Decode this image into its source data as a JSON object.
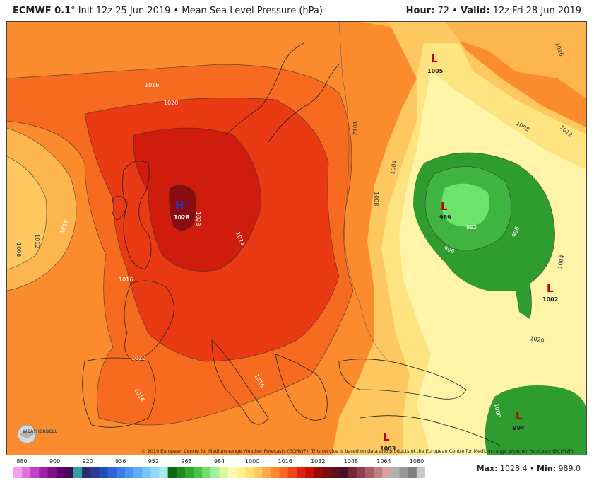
{
  "header": {
    "model": "ECMWF 0.1",
    "degree": "°",
    "init": "Init 12z 25 Jun 2019",
    "bullet": "•",
    "field": "Mean Sea Level Pressure (hPa)",
    "hour_label": "Hour:",
    "hour_value": "72",
    "valid_label": "Valid:",
    "valid_value": "12z Fri 28 Jun 2019"
  },
  "centers": [
    {
      "type": "H",
      "value": "1028",
      "color": "#1a3cc8"
    },
    {
      "type": "L",
      "value": "1005",
      "color": "#c00000"
    },
    {
      "type": "L",
      "value": "989",
      "color": "#c00000"
    },
    {
      "type": "L",
      "value": "1002",
      "color": "#c00000"
    },
    {
      "type": "L",
      "value": "994",
      "color": "#c00000"
    },
    {
      "type": "L",
      "value": "1003",
      "color": "#c00000"
    }
  ],
  "isobar_labels": [
    "1016",
    "1020",
    "1016",
    "1012",
    "1008",
    "1016",
    "1020",
    "1024",
    "1028",
    "1012",
    "1008",
    "1004",
    "1008",
    "1012",
    "1016",
    "996",
    "992",
    "996",
    "1004",
    "1000",
    "1016",
    "1016",
    "1020"
  ],
  "credit": "© 2019 European Centre for Medium-range Weather Forecasts (ECMWF). This service is based on data and products of the European Centre for Medium-range Weather Forecasts (ECMWF).",
  "logo_text": "WEATHERBELL",
  "colorbar": {
    "ticks": [
      "880",
      "900",
      "920",
      "936",
      "952",
      "968",
      "984",
      "1000",
      "1016",
      "1032",
      "1048",
      "1064",
      "1080"
    ],
    "colors": [
      "#f2a0f0",
      "#e070e0",
      "#c040c8",
      "#a020a8",
      "#801088",
      "#600070",
      "#480858",
      "#30a0a0",
      "#2c2c70",
      "#283c90",
      "#1e50b8",
      "#2a64d8",
      "#3a7ce8",
      "#4c94f0",
      "#60acf4",
      "#78c4f8",
      "#90d8f8",
      "#a8e8f0",
      "#106810",
      "#1e8a1e",
      "#2ea82e",
      "#48c448",
      "#6ee06e",
      "#a0f0a0",
      "#d8f8a0",
      "#fff8b0",
      "#fff090",
      "#ffe070",
      "#ffc860",
      "#ffa848",
      "#ff8830",
      "#ff6820",
      "#f04818",
      "#e02010",
      "#c81008",
      "#a00808",
      "#800810",
      "#601018",
      "#481020",
      "#702838",
      "#904050",
      "#a86068",
      "#c08080",
      "#d8a0a0",
      "#b0b0b0",
      "#989898",
      "#808080",
      "#c8c8c8"
    ]
  },
  "stats": {
    "max_label": "Max:",
    "max_value": "1028.4",
    "sep": "•",
    "min_label": "Min:",
    "min_value": "989.0"
  }
}
